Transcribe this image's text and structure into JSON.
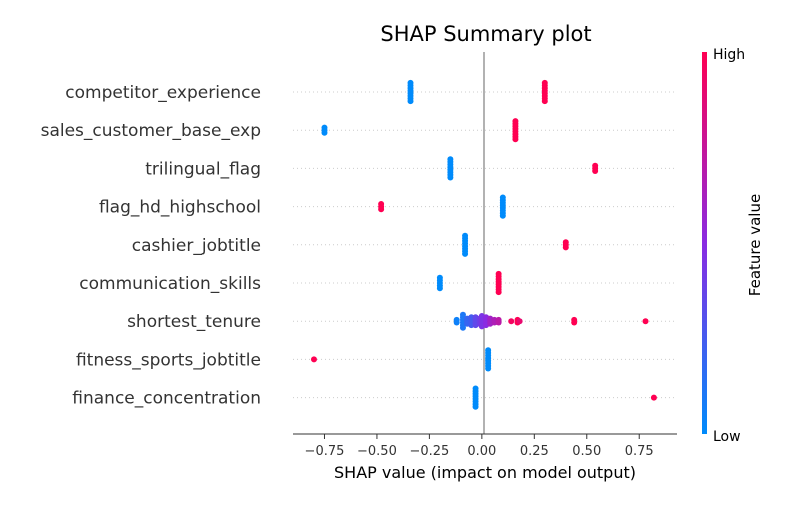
{
  "chart_data": {
    "type": "scatter",
    "title": "SHAP Summary plot",
    "xlabel": "SHAP value (impact on model output)",
    "xlim": [
      -0.9,
      0.93
    ],
    "x_ticks": [
      "−0.75",
      "−0.50",
      "−0.25",
      "0.00",
      "0.25",
      "0.50",
      "0.75"
    ],
    "x_tick_values": [
      -0.75,
      -0.5,
      -0.25,
      0,
      0.25,
      0.5,
      0.75
    ],
    "features": [
      "competitor_experience",
      "sales_customer_base_exp",
      "trilingual_flag",
      "flag_hd_highschool",
      "cashier_jobtitle",
      "communication_skills",
      "shortest_tenure",
      "fitness_sports_jobtitle",
      "finance_concentration"
    ],
    "colorbar": {
      "label": "Feature value",
      "high": "High",
      "low": "Low",
      "low_color": "#008bfb",
      "high_color": "#ff0052",
      "mid_color": "#8a2be2"
    },
    "series": [
      {
        "feature": "competitor_experience",
        "points": [
          {
            "x": -0.34,
            "value": 0.0,
            "count": 8
          },
          {
            "x": 0.3,
            "value": 1.0,
            "count": 8
          }
        ]
      },
      {
        "feature": "sales_customer_base_exp",
        "points": [
          {
            "x": -0.75,
            "value": 0.0,
            "count": 3
          },
          {
            "x": 0.16,
            "value": 1.0,
            "count": 8
          }
        ]
      },
      {
        "feature": "trilingual_flag",
        "points": [
          {
            "x": -0.15,
            "value": 0.0,
            "count": 8
          },
          {
            "x": 0.54,
            "value": 1.0,
            "count": 3
          }
        ]
      },
      {
        "feature": "flag_hd_highschool",
        "points": [
          {
            "x": -0.48,
            "value": 1.0,
            "count": 3
          },
          {
            "x": 0.1,
            "value": 0.0,
            "count": 8
          }
        ]
      },
      {
        "feature": "cashier_jobtitle",
        "points": [
          {
            "x": -0.08,
            "value": 0.0,
            "count": 8
          },
          {
            "x": 0.4,
            "value": 1.0,
            "count": 3
          }
        ]
      },
      {
        "feature": "communication_skills",
        "points": [
          {
            "x": -0.2,
            "value": 0.0,
            "count": 5
          },
          {
            "x": 0.08,
            "value": 1.0,
            "count": 8
          }
        ]
      },
      {
        "feature": "shortest_tenure",
        "points": [
          {
            "x": -0.12,
            "value": 0.05,
            "count": 2
          },
          {
            "x": -0.09,
            "value": 0.1,
            "count": 6
          },
          {
            "x": -0.07,
            "value": 0.2,
            "count": 3
          },
          {
            "x": -0.05,
            "value": 0.25,
            "count": 4
          },
          {
            "x": -0.03,
            "value": 0.35,
            "count": 4
          },
          {
            "x": -0.01,
            "value": 0.4,
            "count": 3
          },
          {
            "x": 0.0,
            "value": 0.45,
            "count": 5
          },
          {
            "x": 0.02,
            "value": 0.5,
            "count": 4
          },
          {
            "x": 0.04,
            "value": 0.6,
            "count": 3
          },
          {
            "x": 0.06,
            "value": 0.65,
            "count": 2
          },
          {
            "x": 0.08,
            "value": 0.7,
            "count": 2
          },
          {
            "x": 0.14,
            "value": 0.95,
            "count": 1
          },
          {
            "x": 0.17,
            "value": 1.0,
            "count": 2
          },
          {
            "x": 0.18,
            "value": 0.9,
            "count": 1
          },
          {
            "x": 0.44,
            "value": 1.0,
            "count": 2
          },
          {
            "x": 0.78,
            "value": 1.0,
            "count": 1
          }
        ]
      },
      {
        "feature": "fitness_sports_jobtitle",
        "points": [
          {
            "x": -0.8,
            "value": 1.0,
            "count": 1
          },
          {
            "x": 0.03,
            "value": 0.0,
            "count": 8
          }
        ]
      },
      {
        "feature": "finance_concentration",
        "points": [
          {
            "x": -0.03,
            "value": 0.0,
            "count": 8
          },
          {
            "x": 0.82,
            "value": 1.0,
            "count": 1
          }
        ]
      }
    ]
  }
}
